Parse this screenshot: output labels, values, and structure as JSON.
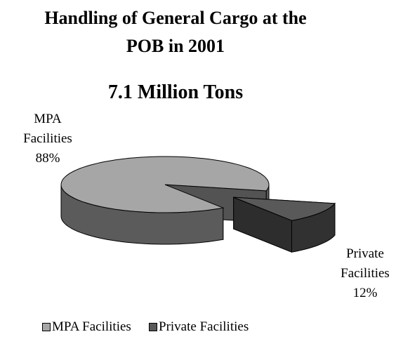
{
  "chart_data": {
    "type": "pie3d",
    "title": "Handling of General Cargo at the POB in 2001",
    "subtitle": "7.1 Million Tons",
    "categories": [
      "MPA Facilities",
      "Private Facilities"
    ],
    "values": [
      88,
      12
    ],
    "value_labels": [
      "88%",
      "12%"
    ],
    "colors": [
      "#a6a6a6",
      "#595959"
    ],
    "exploded": [
      false,
      true
    ],
    "legend": "bottom"
  }
}
